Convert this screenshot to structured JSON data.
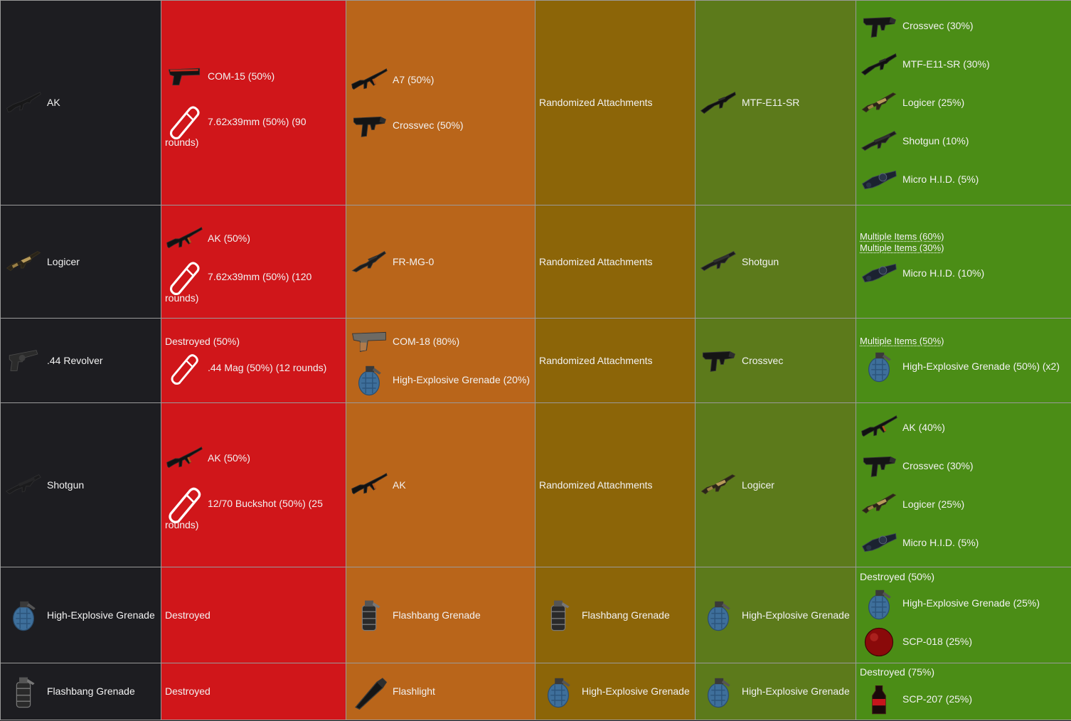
{
  "colors": {
    "input": "#1d1d21",
    "rough": "#d0161a",
    "coarse": "#b9651a",
    "one_to_one": "#8c6508",
    "fine": "#5c7a1b",
    "very_fine": "#4b8d16",
    "border": "#9a9a9a"
  },
  "rows": [
    {
      "input": {
        "label": "AK",
        "icon": "ak-rifle-icon"
      },
      "rough": {
        "weapon": "COM-15 (50%)",
        "ammo_line1": "7.62x39mm (50%) (90",
        "ammo_line2": "rounds)"
      },
      "coarse": {
        "items": [
          "A7 (50%)",
          "Crossvec (50%)"
        ]
      },
      "one_to_one": "Randomized Attachments",
      "fine": {
        "label": "MTF-E11-SR"
      },
      "very_fine": {
        "items": [
          "Crossvec (30%)",
          "MTF-E11-SR (30%)",
          "Logicer (25%)",
          "Shotgun (10%)",
          "Micro H.I.D. (5%)"
        ]
      }
    },
    {
      "input": {
        "label": "Logicer",
        "icon": "logicer-icon"
      },
      "rough": {
        "weapon": "AK (50%)",
        "ammo_line1": "7.62x39mm (50%) (120",
        "ammo_line2": "rounds)"
      },
      "coarse": {
        "label": "FR-MG-0"
      },
      "one_to_one": "Randomized Attachments",
      "fine": {
        "label": "Shotgun"
      },
      "very_fine": {
        "multi1": "Multiple Items (60%)",
        "multi2": "Multiple Items (30%)",
        "item": "Micro H.I.D. (10%)"
      }
    },
    {
      "input": {
        "label": ".44 Revolver",
        "icon": "revolver-icon"
      },
      "rough": {
        "note": "Destroyed (50%)",
        "ammo": ".44 Mag (50%) (12 rounds)"
      },
      "coarse": {
        "items": [
          "COM-18 (80%)",
          "High-Explosive Grenade (20%)"
        ]
      },
      "one_to_one": "Randomized Attachments",
      "fine": {
        "label": "Crossvec"
      },
      "very_fine": {
        "multi1": "Multiple Items (50%)",
        "item": "High-Explosive Grenade (50%) (x2)"
      }
    },
    {
      "input": {
        "label": "Shotgun",
        "icon": "shotgun-icon"
      },
      "rough": {
        "weapon": "AK (50%)",
        "ammo_line1": "12/70 Buckshot (50%) (25",
        "ammo_line2": "rounds)"
      },
      "coarse": {
        "label": "AK"
      },
      "one_to_one": "Randomized Attachments",
      "fine": {
        "label": "Logicer"
      },
      "very_fine": {
        "items": [
          "AK (40%)",
          "Crossvec (30%)",
          "Logicer (25%)",
          "Micro H.I.D. (5%)"
        ]
      }
    },
    {
      "input": {
        "label": "High-Explosive Grenade",
        "icon": "grenade-icon"
      },
      "rough": {
        "label": "Destroyed"
      },
      "coarse": {
        "label": "Flashbang Grenade"
      },
      "one_to_one": "Flashbang Grenade",
      "fine": {
        "label": "High-Explosive Grenade"
      },
      "very_fine": {
        "note": "Destroyed (50%)",
        "items": [
          "High-Explosive Grenade (25%)",
          "SCP-018 (25%)"
        ]
      }
    },
    {
      "input": {
        "label": "Flashbang Grenade",
        "icon": "flashbang-icon"
      },
      "rough": {
        "label": "Destroyed"
      },
      "coarse": {
        "label": "Flashlight"
      },
      "one_to_one": "High-Explosive Grenade",
      "fine": {
        "label": "High-Explosive Grenade"
      },
      "very_fine": {
        "note": "Destroyed (75%)",
        "item": "SCP-207 (25%)"
      }
    }
  ]
}
